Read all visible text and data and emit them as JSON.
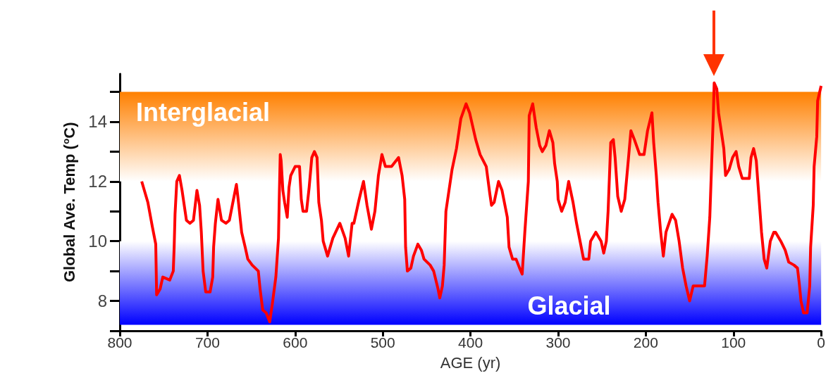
{
  "chart_data": {
    "type": "line",
    "xlabel": "AGE (yr)",
    "ylabel": "Global Ave. Temp ($^{o}$C)",
    "xlim": [
      800,
      0
    ],
    "xticks": [
      800,
      700,
      600,
      500,
      400,
      300,
      200,
      100,
      0
    ],
    "ylim": [
      7,
      15.6
    ],
    "yticks": [
      {
        "value": 7,
        "label": null
      },
      8,
      {
        "value": 9,
        "label": null
      },
      10,
      {
        "value": 11,
        "label": null
      },
      12,
      {
        "value": 13,
        "label": null
      },
      14,
      {
        "value": 15,
        "label": null
      }
    ],
    "grid": false,
    "marker": "none",
    "line_style": "solid",
    "bands": [
      {
        "axis": "y",
        "from": 12,
        "to": 15,
        "label": "Interglacial",
        "color": "#ff8000"
      },
      {
        "axis": "y",
        "from": 7.2,
        "to": 10,
        "label": "Glacial",
        "color": "#0000ff"
      }
    ],
    "series": [
      {
        "color": "#ff0000",
        "x": [
          775,
          768,
          763,
          759,
          758,
          754,
          751,
          743,
          739,
          738,
          737,
          735,
          732,
          729,
          724,
          720,
          716,
          712,
          709,
          707,
          705,
          702,
          697,
          694,
          693,
          691,
          688,
          684,
          679,
          675,
          671,
          667,
          665,
          661,
          657,
          654,
          649,
          642,
          640,
          637,
          633,
          629,
          626,
          622,
          619,
          618,
          617,
          616,
          614,
          612,
          609,
          607,
          605,
          600,
          595,
          593,
          591,
          587,
          584,
          581,
          578,
          575,
          573,
          570,
          568,
          563,
          557,
          549,
          543,
          539,
          535,
          533,
          527,
          522,
          518,
          513,
          509,
          505,
          501,
          497,
          490,
          482,
          478,
          475,
          474,
          472,
          468,
          465,
          460,
          456,
          453,
          446,
          442,
          437,
          435,
          432,
          430,
          428,
          425,
          421,
          416,
          411,
          405,
          401,
          394,
          389,
          382,
          378,
          376,
          373,
          368,
          364,
          358,
          356,
          352,
          348,
          344,
          341,
          338,
          334,
          333,
          329,
          325,
          321,
          318,
          314,
          310,
          306,
          304,
          301,
          300,
          296,
          292,
          288,
          283,
          279,
          275,
          271,
          265,
          263,
          257,
          251,
          248,
          245,
          243,
          240,
          237,
          235,
          232,
          228,
          224,
          220,
          217,
          213,
          207,
          202,
          198,
          193,
          191,
          188,
          186,
          183,
          180,
          177,
          170,
          166,
          162,
          158,
          154,
          150,
          146,
          139,
          133,
          130,
          127,
          125,
          123,
          122,
          119,
          117,
          114,
          111,
          109,
          105,
          101,
          97,
          94,
          90,
          82,
          80,
          77,
          74,
          72,
          70,
          68,
          65,
          62,
          58,
          54,
          52,
          46,
          41,
          37,
          31,
          27,
          25,
          23,
          20,
          16,
          13,
          12,
          9,
          8,
          5,
          4,
          0
        ],
        "values": [
          12.0,
          11.3,
          10.5,
          9.9,
          8.2,
          8.4,
          8.8,
          8.7,
          9.0,
          9.8,
          10.9,
          12.0,
          12.2,
          11.7,
          10.7,
          10.6,
          10.7,
          11.7,
          11.2,
          10.3,
          9.0,
          8.3,
          8.3,
          8.8,
          9.8,
          10.6,
          11.4,
          10.7,
          10.6,
          10.7,
          11.3,
          11.9,
          11.4,
          10.3,
          9.8,
          9.4,
          9.2,
          9.0,
          8.4,
          7.7,
          7.6,
          7.3,
          7.9,
          8.8,
          10.1,
          11.6,
          12.9,
          12.7,
          11.7,
          11.3,
          10.8,
          11.8,
          12.2,
          12.5,
          12.5,
          11.4,
          11.0,
          11.0,
          11.8,
          12.8,
          13.0,
          12.8,
          11.3,
          10.7,
          10.0,
          9.5,
          10.1,
          10.6,
          10.1,
          9.5,
          10.6,
          10.6,
          11.4,
          12.0,
          11.2,
          10.4,
          11.0,
          12.2,
          12.9,
          12.5,
          12.5,
          12.8,
          12.2,
          11.4,
          9.8,
          9.0,
          9.1,
          9.5,
          9.9,
          9.7,
          9.4,
          9.2,
          9.0,
          8.4,
          8.1,
          8.5,
          9.2,
          11.0,
          11.6,
          12.4,
          13.1,
          14.1,
          14.6,
          14.3,
          13.4,
          12.9,
          12.5,
          11.6,
          11.2,
          11.3,
          12.0,
          11.7,
          10.8,
          9.8,
          9.4,
          9.4,
          9.1,
          8.9,
          10.3,
          12.0,
          14.2,
          14.6,
          13.8,
          13.2,
          13.0,
          13.2,
          13.7,
          13.3,
          12.6,
          12.0,
          11.4,
          11.0,
          11.3,
          12.0,
          11.3,
          10.6,
          10.0,
          9.4,
          9.4,
          10.0,
          10.3,
          10.0,
          9.6,
          10.0,
          11.0,
          13.3,
          13.4,
          12.8,
          11.5,
          11.0,
          11.4,
          12.7,
          13.7,
          13.4,
          12.9,
          12.9,
          13.7,
          14.3,
          13.3,
          12.2,
          11.3,
          10.3,
          9.5,
          10.3,
          10.9,
          10.7,
          10.0,
          9.1,
          8.5,
          8.0,
          8.5,
          8.5,
          8.5,
          9.5,
          10.8,
          12.5,
          14.2,
          15.3,
          15.1,
          14.3,
          13.7,
          13.1,
          12.2,
          12.4,
          12.8,
          13.0,
          12.5,
          12.1,
          12.1,
          12.8,
          13.1,
          12.7,
          11.9,
          11.1,
          10.3,
          9.4,
          9.1,
          10.0,
          10.3,
          10.3,
          10.0,
          9.7,
          9.3,
          9.2,
          9.1,
          8.6,
          8.0,
          7.6,
          7.6,
          8.5,
          9.8,
          11.2,
          12.5,
          13.5,
          14.7,
          15.2
        ]
      }
    ]
  }
}
